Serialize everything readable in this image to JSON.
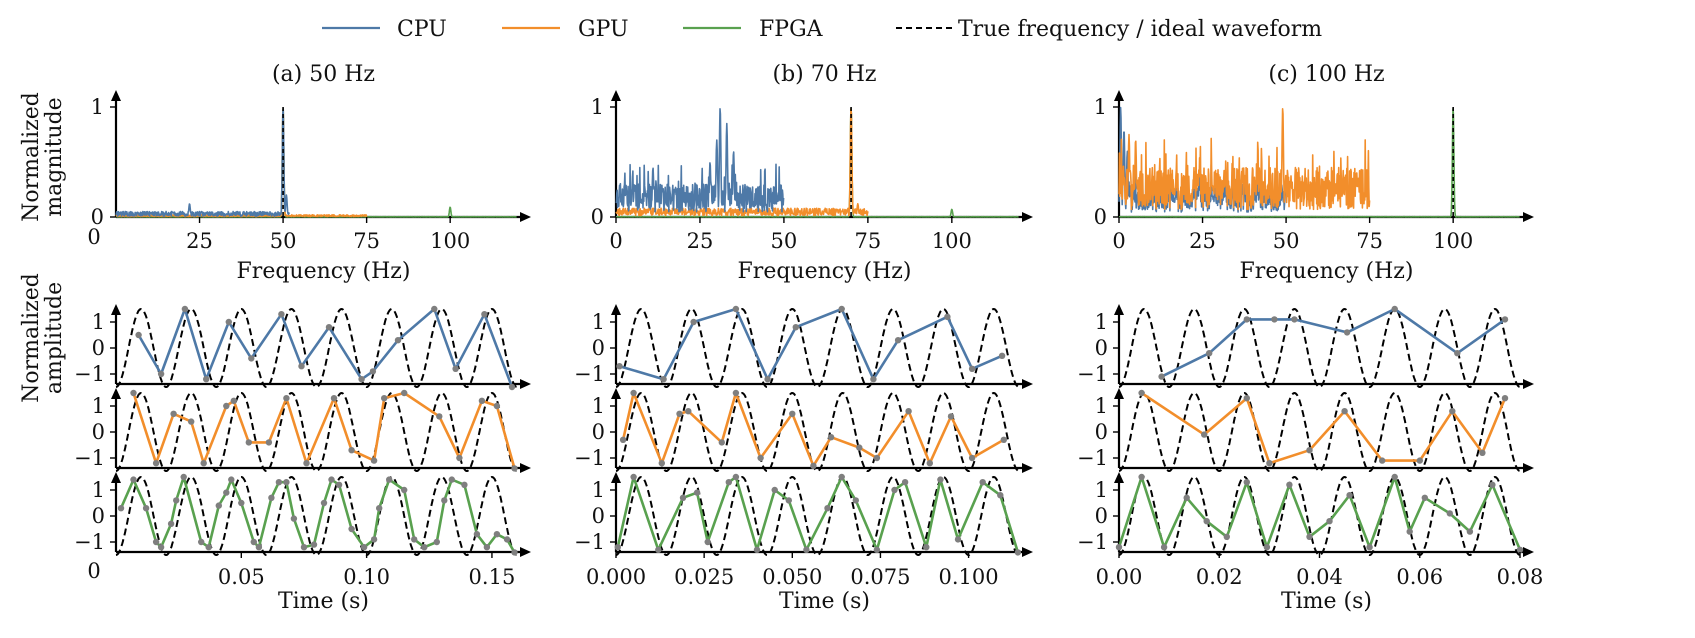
{
  "legend": [
    {
      "name": "CPU",
      "color": "#4e79a7",
      "dashed": false
    },
    {
      "name": "GPU",
      "color": "#f28e2b",
      "dashed": false
    },
    {
      "name": "FPGA",
      "color": "#59a14f",
      "dashed": false
    },
    {
      "name": "True frequency / ideal waveform",
      "color": "#000000",
      "dashed": true
    }
  ],
  "colors": {
    "CPU": "#4e79a7",
    "GPU": "#f28e2b",
    "FPGA": "#59a14f",
    "ideal": "#000000",
    "marker": "#7f7f7f"
  },
  "row_labels": {
    "spectrum": [
      "Normalized",
      "magnitude"
    ],
    "waveform": [
      "Normalized",
      "amplitude"
    ]
  },
  "chart_data": [
    {
      "type": "line",
      "panel": "a",
      "title": "(a) 50 Hz",
      "true_frequency": 50,
      "spectrum": {
        "xlabel": "Frequency (Hz)",
        "xlim": [
          0,
          120
        ],
        "ylim": [
          0,
          1
        ],
        "xticks": [
          25,
          50,
          75,
          100
        ],
        "yticks": [
          0,
          1
        ],
        "extra_labels": [
          "0"
        ],
        "series": [
          {
            "name": "CPU",
            "x_max": 52,
            "noise_level": 0.05,
            "peaks": [
              [
                22,
                0.12
              ],
              [
                50,
                1.0
              ],
              [
                51,
                0.2
              ]
            ]
          },
          {
            "name": "GPU",
            "x_max": 75,
            "noise_level": 0.02,
            "peaks": [
              [
                50,
                1.0
              ]
            ]
          },
          {
            "name": "FPGA",
            "x_max": 120,
            "noise_level": 0.003,
            "peaks": [
              [
                50,
                1.0
              ],
              [
                100,
                0.09
              ]
            ]
          }
        ]
      },
      "waveform": {
        "xlabel": "Time (s)",
        "xlim": [
          0,
          0.16
        ],
        "ylim": [
          -1.5,
          1.5
        ],
        "xticks": [
          "0.05",
          "0.10",
          "0.15"
        ],
        "yticks": [
          "1",
          "0",
          "−1"
        ],
        "xtick_values": [
          0.05,
          0.1,
          0.15
        ],
        "extra_labels": [
          "0"
        ],
        "series": [
          {
            "name": "CPU",
            "x": [
              0.009,
              0.018,
              0.0275,
              0.036,
              0.045,
              0.054,
              0.066,
              0.074,
              0.085,
              0.098,
              0.1025,
              0.1125,
              0.127,
              0.1355,
              0.147,
              0.158
            ],
            "y": [
              0.5,
              -1.0,
              1.5,
              -1.2,
              1.0,
              -0.4,
              1.3,
              -0.7,
              0.8,
              -1.2,
              -0.9,
              0.3,
              1.5,
              -0.8,
              1.3,
              -1.5
            ]
          },
          {
            "name": "GPU",
            "x": [
              0.007,
              0.016,
              0.023,
              0.03,
              0.035,
              0.044,
              0.047,
              0.053,
              0.061,
              0.068,
              0.076,
              0.087,
              0.094,
              0.103,
              0.107,
              0.115,
              0.129,
              0.137,
              0.146,
              0.152,
              0.159
            ],
            "y": [
              1.5,
              -1.2,
              0.7,
              0.4,
              -1.2,
              1.0,
              1.2,
              -0.4,
              -0.4,
              1.3,
              -1.2,
              1.3,
              -0.7,
              -1.1,
              1.3,
              1.5,
              0.6,
              -1.0,
              1.2,
              1.0,
              -1.4
            ]
          },
          {
            "name": "FPGA",
            "x": [
              0.002,
              0.007,
              0.012,
              0.016,
              0.018,
              0.022,
              0.024,
              0.027,
              0.034,
              0.037,
              0.041,
              0.044,
              0.046,
              0.05,
              0.055,
              0.057,
              0.062,
              0.065,
              0.068,
              0.071,
              0.075,
              0.079,
              0.083,
              0.086,
              0.089,
              0.094,
              0.099,
              0.103,
              0.105,
              0.109,
              0.115,
              0.119,
              0.123,
              0.128,
              0.131,
              0.134,
              0.139,
              0.144,
              0.148,
              0.152,
              0.156,
              0.159
            ],
            "y": [
              0.3,
              1.4,
              0.3,
              -1.0,
              -1.2,
              -0.3,
              0.6,
              1.5,
              -1.0,
              -1.2,
              0.4,
              0.9,
              1.4,
              0.5,
              -1.0,
              -1.2,
              0.7,
              1.3,
              1.3,
              -0.1,
              -1.2,
              -1.1,
              0.5,
              1.4,
              1.2,
              -0.5,
              -1.2,
              -0.9,
              0.3,
              1.4,
              1.0,
              -0.9,
              -1.2,
              -1.0,
              0.6,
              1.4,
              1.2,
              -0.7,
              -1.2,
              -0.7,
              -0.9,
              -1.4
            ]
          }
        ]
      }
    },
    {
      "type": "line",
      "panel": "b",
      "title": "(b) 70 Hz",
      "true_frequency": 70,
      "spectrum": {
        "xlabel": "Frequency (Hz)",
        "xlim": [
          0,
          120
        ],
        "ylim": [
          0,
          1
        ],
        "xticks": [
          0,
          25,
          50,
          75,
          100
        ],
        "yticks": [
          0,
          1
        ],
        "extra_labels": [],
        "series": [
          {
            "name": "CPU",
            "x_max": 50,
            "noise_level": 0.3,
            "peaks": [
              [
                28,
                0.5
              ],
              [
                30,
                0.7
              ],
              [
                31,
                1.0
              ],
              [
                33,
                0.85
              ],
              [
                35,
                0.6
              ],
              [
                11,
                0.45
              ]
            ]
          },
          {
            "name": "GPU",
            "x_max": 75,
            "noise_level": 0.08,
            "peaks": [
              [
                70,
                1.0
              ],
              [
                72,
                0.12
              ]
            ]
          },
          {
            "name": "FPGA",
            "x_max": 120,
            "noise_level": 0.003,
            "peaks": [
              [
                70,
                1.0
              ],
              [
                100,
                0.07
              ]
            ]
          }
        ]
      },
      "waveform": {
        "xlabel": "Time (s)",
        "xlim": [
          0,
          0.1143
        ],
        "ylim": [
          -1.5,
          1.5
        ],
        "xticks": [
          "0.000",
          "0.025",
          "0.050",
          "0.075",
          "0.100"
        ],
        "yticks": [
          "1",
          "0",
          "−1"
        ],
        "xtick_values": [
          0.0,
          0.025,
          0.05,
          0.075,
          0.1
        ],
        "extra_labels": [],
        "series": [
          {
            "name": "CPU",
            "x": [
              0.001,
              0.0135,
              0.022,
              0.034,
              0.043,
              0.051,
              0.064,
              0.073,
              0.08,
              0.094,
              0.101,
              0.1095
            ],
            "y": [
              -0.7,
              -1.2,
              1.0,
              1.5,
              -1.2,
              0.8,
              1.5,
              -1.2,
              0.3,
              1.2,
              -0.8,
              -0.3
            ]
          },
          {
            "name": "GPU",
            "x": [
              0.002,
              0.005,
              0.013,
              0.018,
              0.0205,
              0.03,
              0.034,
              0.041,
              0.05,
              0.056,
              0.061,
              0.069,
              0.074,
              0.083,
              0.089,
              0.095,
              0.101,
              0.11
            ],
            "y": [
              -0.3,
              1.5,
              -1.2,
              0.7,
              0.8,
              -0.4,
              1.5,
              -1.0,
              0.7,
              -1.3,
              -0.2,
              -0.6,
              -1.0,
              0.8,
              -1.2,
              0.6,
              -1.0,
              -0.3
            ]
          },
          {
            "name": "FPGA",
            "x": [
              0.0005,
              0.005,
              0.012,
              0.019,
              0.023,
              0.026,
              0.032,
              0.034,
              0.04,
              0.045,
              0.049,
              0.054,
              0.06,
              0.064,
              0.068,
              0.074,
              0.079,
              0.082,
              0.088,
              0.092,
              0.097,
              0.104,
              0.109,
              0.114
            ],
            "y": [
              -1.2,
              1.5,
              -1.3,
              0.7,
              0.9,
              -1.0,
              1.3,
              1.5,
              -1.3,
              1.0,
              0.6,
              -1.3,
              0.3,
              1.5,
              0.6,
              -1.3,
              1.0,
              1.3,
              -1.2,
              1.4,
              -0.9,
              1.3,
              0.8,
              -1.4
            ]
          }
        ]
      }
    },
    {
      "type": "line",
      "panel": "c",
      "title": "(c) 100 Hz",
      "true_frequency": 100,
      "spectrum": {
        "xlabel": "Frequency (Hz)",
        "xlim": [
          0,
          120
        ],
        "ylim": [
          0,
          1
        ],
        "xticks": [
          0,
          25,
          50,
          75,
          100
        ],
        "yticks": [
          0,
          1
        ],
        "extra_labels": [],
        "series": [
          {
            "name": "CPU",
            "x_max": 50,
            "noise_level": 0.3,
            "peaks": [
              [
                0.5,
                1.0
              ],
              [
                1.5,
                0.8
              ],
              [
                2.5,
                0.6
              ]
            ]
          },
          {
            "name": "GPU",
            "x_max": 75,
            "noise_level": 0.45,
            "peaks": [
              [
                49,
                1.0
              ],
              [
                3,
                0.75
              ],
              [
                5,
                0.7
              ]
            ]
          },
          {
            "name": "FPGA",
            "x_max": 120,
            "noise_level": 0.003,
            "peaks": [
              [
                100,
                1.0
              ]
            ]
          }
        ]
      },
      "waveform": {
        "xlabel": "Time (s)",
        "xlim": [
          0,
          0.08
        ],
        "ylim": [
          -1.5,
          1.5
        ],
        "xticks": [
          "0.00",
          "0.02",
          "0.04",
          "0.06",
          "0.08"
        ],
        "yticks": [
          "1",
          "0",
          "−1"
        ],
        "xtick_values": [
          0.0,
          0.02,
          0.04,
          0.06,
          0.08
        ],
        "extra_labels": [],
        "series": [
          {
            "name": "CPU",
            "x": [
              0.0085,
              0.018,
              0.0255,
              0.031,
              0.035,
              0.0455,
              0.055,
              0.0675,
              0.077
            ],
            "y": [
              -1.1,
              -0.2,
              1.1,
              1.1,
              1.1,
              0.6,
              1.5,
              -0.2,
              1.1
            ]
          },
          {
            "name": "GPU",
            "x": [
              0.0045,
              0.017,
              0.0255,
              0.03,
              0.038,
              0.045,
              0.0525,
              0.06,
              0.0665,
              0.0725,
              0.077
            ],
            "y": [
              1.5,
              -0.1,
              1.3,
              -1.2,
              -0.7,
              0.8,
              -1.1,
              -1.1,
              0.8,
              -0.8,
              1.3
            ]
          },
          {
            "name": "FPGA",
            "x": [
              0.0,
              0.0045,
              0.009,
              0.0135,
              0.0175,
              0.0215,
              0.0255,
              0.0295,
              0.034,
              0.038,
              0.042,
              0.046,
              0.05,
              0.055,
              0.058,
              0.061,
              0.066,
              0.07,
              0.0745,
              0.08
            ],
            "y": [
              -1.2,
              1.5,
              -1.2,
              0.7,
              -0.2,
              -0.8,
              1.3,
              -1.2,
              1.2,
              -0.8,
              -0.2,
              0.8,
              -1.2,
              1.5,
              -0.6,
              0.7,
              0.1,
              -0.6,
              1.2,
              -1.3
            ]
          }
        ]
      }
    }
  ]
}
